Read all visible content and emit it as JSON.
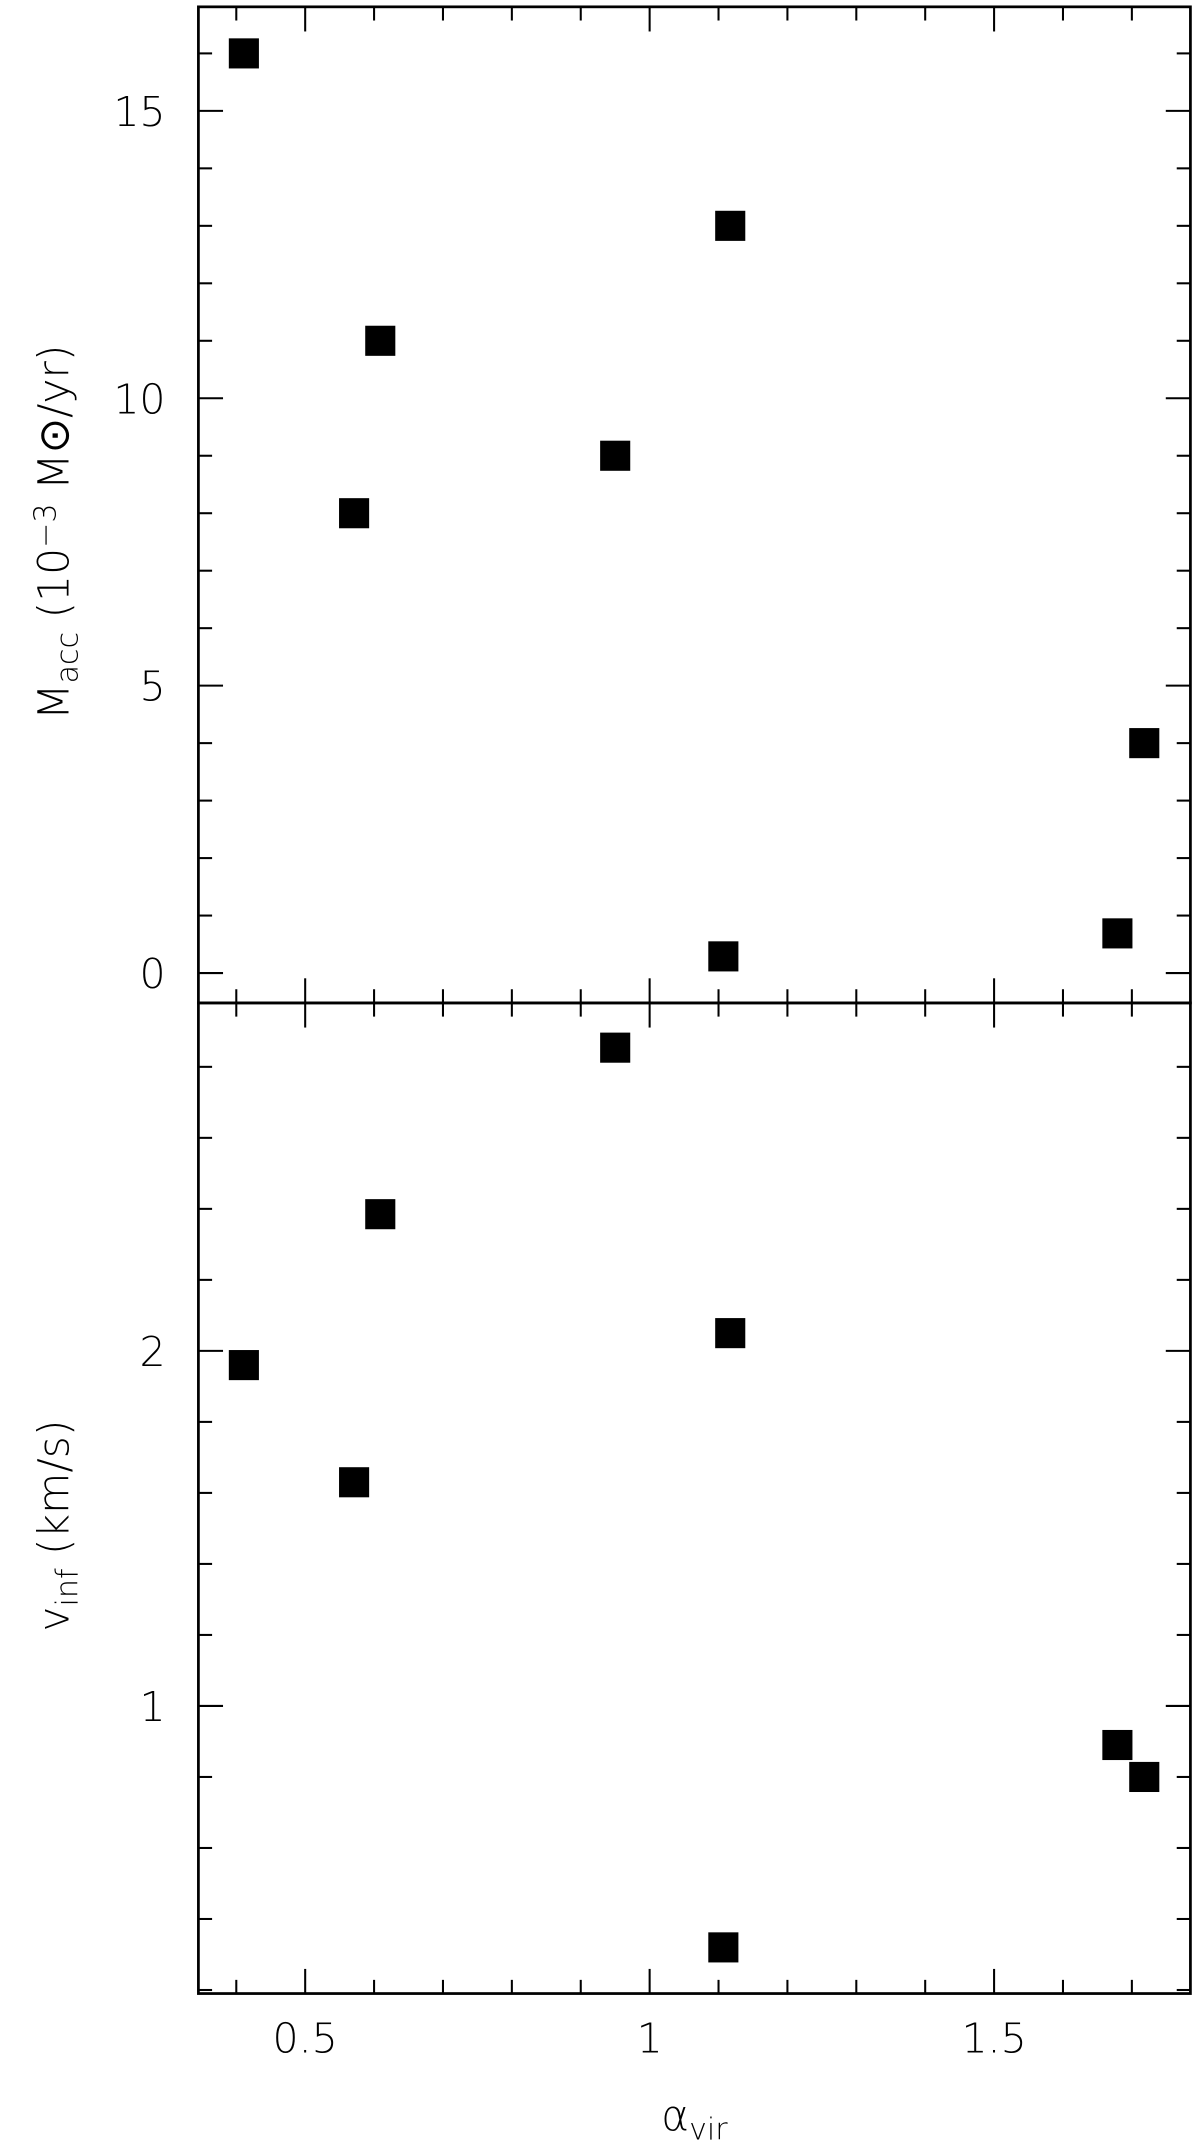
{
  "chart_data": [
    {
      "type": "scatter",
      "x": [
        0.411,
        0.571,
        0.609,
        0.95,
        1.107,
        1.117,
        1.679,
        1.718
      ],
      "values": [
        16,
        8,
        11,
        9,
        0.29,
        13,
        0.69,
        4
      ],
      "color": "#000000",
      "xlim": [
        0.345,
        1.785
      ],
      "xticks": [
        0.5,
        1,
        1.5
      ],
      "xminor": [
        0.4,
        0.6,
        0.7,
        0.8,
        0.9,
        1.1,
        1.2,
        1.3,
        1.4,
        1.6,
        1.7
      ],
      "ylim": [
        -0.52,
        16.81
      ],
      "yticks": [
        0,
        5,
        10,
        15
      ],
      "yminor": [
        1,
        2,
        3,
        4,
        6,
        7,
        8,
        9,
        11,
        12,
        13,
        14,
        16
      ],
      "ylabel": [
        {
          "text": "M"
        },
        {
          "text": "acc",
          "style": "sub"
        },
        {
          "text": " (10"
        },
        {
          "text": "−3",
          "style": "sup"
        },
        {
          "text": " M⊙/yr)"
        }
      ]
    },
    {
      "type": "scatter",
      "x": [
        0.411,
        0.571,
        0.609,
        0.95,
        1.107,
        1.117,
        1.679,
        1.718
      ],
      "values": [
        1.96,
        1.63,
        2.385,
        2.854,
        0.32,
        2.05,
        0.89,
        0.8
      ],
      "color": "#000000",
      "xlim": [
        0.345,
        1.785
      ],
      "xticks": [
        0.5,
        1,
        1.5
      ],
      "xminor": [
        0.4,
        0.6,
        0.7,
        0.8,
        0.9,
        1.1,
        1.2,
        1.3,
        1.4,
        1.6,
        1.7
      ],
      "ylim": [
        0.19,
        2.98
      ],
      "yticks": [
        1,
        2
      ],
      "yminor": [
        0.2,
        0.4,
        0.6,
        0.8,
        1.2,
        1.4,
        1.6,
        1.8,
        2.2,
        2.4,
        2.6,
        2.8
      ],
      "ylabel": [
        {
          "text": "v"
        },
        {
          "text": "inf",
          "style": "sub"
        },
        {
          "text": " (km/s)"
        }
      ],
      "xlabel": [
        {
          "text": "α"
        },
        {
          "text": "vir",
          "style": "sub"
        }
      ]
    }
  ]
}
